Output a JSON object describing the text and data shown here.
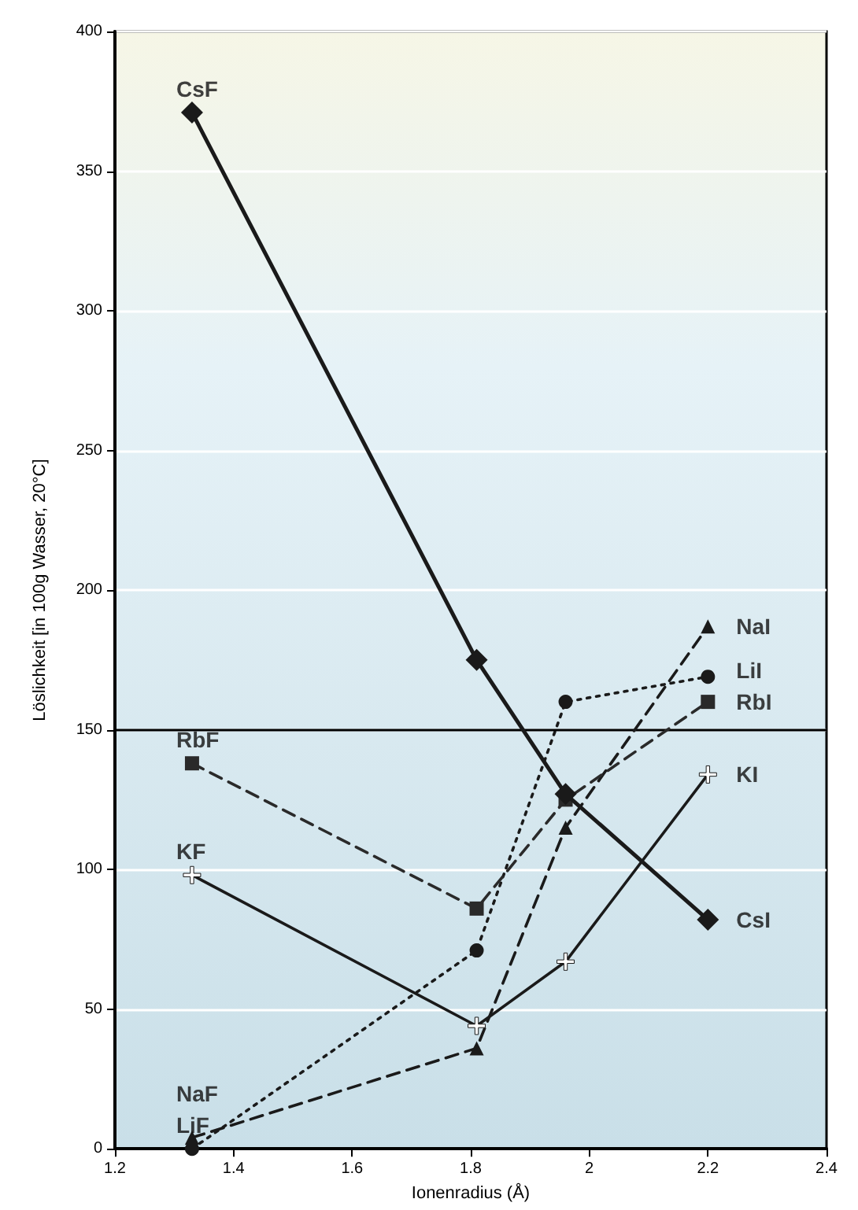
{
  "chart_data": {
    "type": "line",
    "xlabel": "Ionenradius (Å)",
    "ylabel": "Löslichkeit [in 100g Wasser, 20°C]",
    "x": [
      1.33,
      1.81,
      1.96,
      2.2
    ],
    "series": [
      {
        "color": "#1a1a1a",
        "marker": "diamond",
        "line_style": "solid",
        "values": [
          371,
          175,
          127,
          82
        ]
      },
      {
        "color": "#2a2a2a",
        "marker": "square",
        "line_style": "dashed",
        "values": [
          138,
          86,
          125,
          160
        ]
      },
      {
        "color": "#1a1a1a",
        "marker": "cross",
        "line_style": "solid",
        "values": [
          98,
          44,
          67,
          134
        ]
      },
      {
        "color": "#1a1a1a",
        "marker": "triangle",
        "line_style": "dashed",
        "values": [
          4,
          36,
          115,
          187
        ]
      },
      {
        "color": "#1a1a1a",
        "marker": "circle",
        "line_style": "dotted",
        "values": [
          0,
          71,
          160,
          169
        ]
      }
    ],
    "annotations": [
      "CsF",
      "CsI",
      "RbF",
      "RbI",
      "KF",
      "KI",
      "NaF",
      "NaI",
      "LiF",
      "LiI"
    ],
    "ref_lines": [
      {
        "axis": "y",
        "value": 150,
        "color": "#000000"
      }
    ],
    "xlim": [
      1.2,
      2.4
    ],
    "xticks": [
      1.2,
      1.4,
      1.6,
      1.8,
      2,
      2.2,
      2.4
    ],
    "ylim": [
      0,
      400
    ],
    "yticks": [
      0,
      50,
      100,
      150,
      200,
      250,
      300,
      350,
      400
    ],
    "grid": "y"
  }
}
